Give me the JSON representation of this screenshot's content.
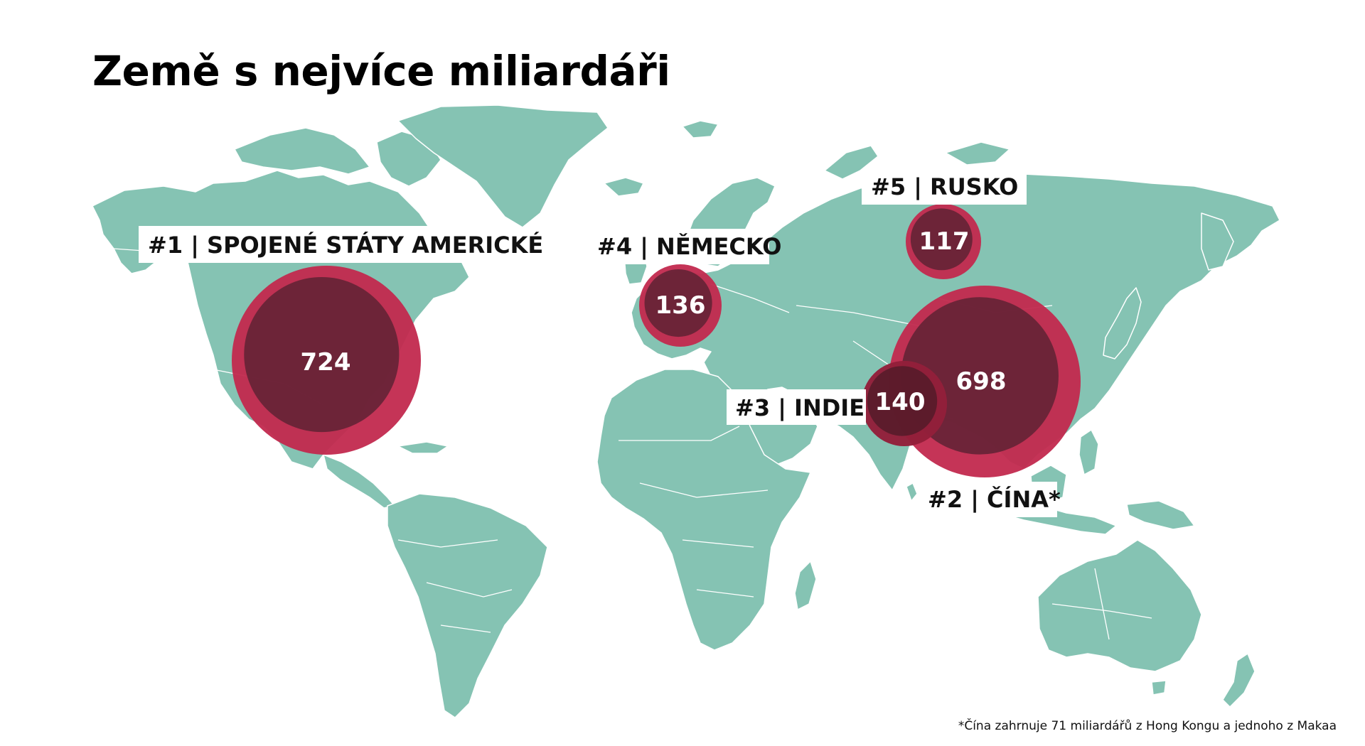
{
  "title": "Země s nejvíce miliardáři",
  "footnote": "*Čína zahrnuje 71 miliardářů z Hong Kongu a jednoho z Makaa",
  "colors": {
    "land": "#85c3b3",
    "bubble_fill": "#c2294e",
    "bubble_dark": "#5e2234",
    "label_bg": "#ffffff",
    "text": "#111111"
  },
  "countries": [
    {
      "rank_label": "#1 | SPOJENÉ STÁTY AMERICKÉ",
      "value": "724"
    },
    {
      "rank_label": "#2 | ČÍNA*",
      "value": "698"
    },
    {
      "rank_label": "#3 | INDIE",
      "value": "140"
    },
    {
      "rank_label": "#4 | NĚMECKO",
      "value": "136"
    },
    {
      "rank_label": "#5 | RUSKO",
      "value": "117"
    }
  ]
}
